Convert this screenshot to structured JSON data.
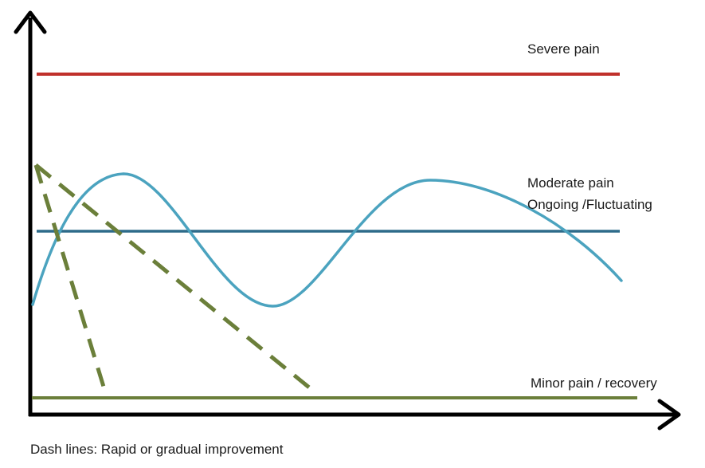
{
  "labels": {
    "severe": "Severe pain",
    "moderate_line1": "Moderate pain",
    "moderate_line2": "Ongoing /Fluctuating",
    "minor": "Minor pain / recovery"
  },
  "caption": "Dash lines:  Rapid or gradual improvement",
  "colors": {
    "axis": "#000000",
    "severe": "#c0302b",
    "moderate": "#2d6b8a",
    "fluctuating": "#4ba3bf",
    "minor": "#6b7f3a",
    "improvement": "#6b7f3a"
  },
  "lines": [
    {
      "name": "severe-pain-line",
      "kind": "level",
      "color_key": "severe"
    },
    {
      "name": "moderate-pain-line",
      "kind": "level",
      "color_key": "moderate"
    },
    {
      "name": "minor-pain-line",
      "kind": "level",
      "color_key": "minor"
    },
    {
      "name": "fluctuating-pain-curve",
      "kind": "wave",
      "color_key": "fluctuating"
    },
    {
      "name": "rapid-improvement-line",
      "kind": "dashed",
      "color_key": "improvement"
    },
    {
      "name": "gradual-improvement-line",
      "kind": "dashed",
      "color_key": "improvement"
    }
  ]
}
